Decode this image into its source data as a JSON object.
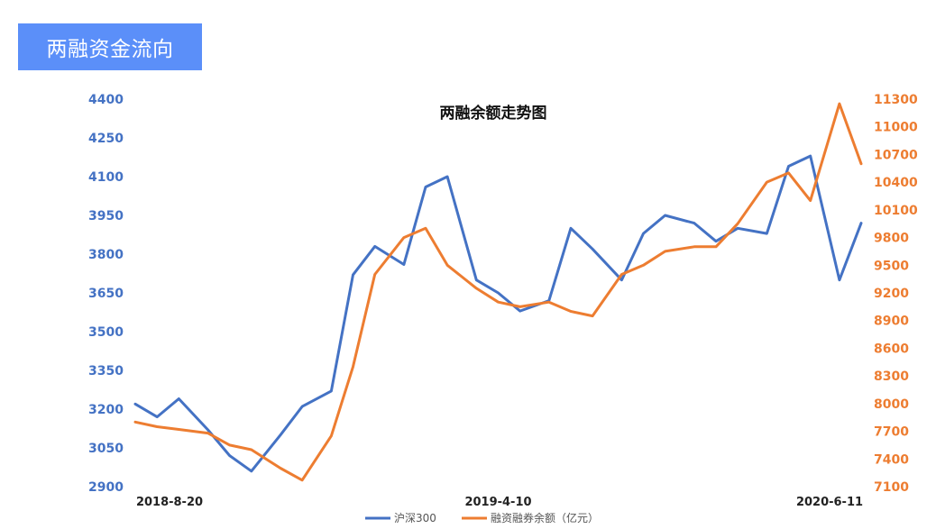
{
  "header": {
    "tag": "两融资金流向"
  },
  "chart_data": {
    "type": "line",
    "title": "两融余额走势图",
    "x_tick_labels": [
      "2018-8-20",
      "2019-4-10",
      "2020-6-11"
    ],
    "y_left": {
      "range": [
        2900,
        4400
      ],
      "ticks": [
        2900,
        3050,
        3200,
        3350,
        3500,
        3650,
        3800,
        3950,
        4100,
        4250,
        4400
      ],
      "color": "#4472c4"
    },
    "y_right": {
      "range": [
        7100,
        11300
      ],
      "ticks": [
        7100,
        7400,
        7700,
        8000,
        8300,
        8600,
        8900,
        9200,
        9500,
        9800,
        10100,
        10400,
        10700,
        11000,
        11300
      ],
      "color": "#ed7d31"
    },
    "x": [
      0,
      0.03,
      0.06,
      0.1,
      0.13,
      0.16,
      0.2,
      0.23,
      0.27,
      0.3,
      0.33,
      0.37,
      0.4,
      0.43,
      0.47,
      0.5,
      0.53,
      0.57,
      0.6,
      0.63,
      0.67,
      0.7,
      0.73,
      0.77,
      0.8,
      0.83,
      0.87,
      0.9,
      0.93,
      0.97,
      1.0
    ],
    "series": [
      {
        "name": "沪深300",
        "axis": "left",
        "color": "#4472c4",
        "values": [
          3220,
          3170,
          3240,
          3120,
          3020,
          2960,
          3100,
          3210,
          3270,
          3720,
          3830,
          3760,
          4060,
          4100,
          3700,
          3650,
          3580,
          3620,
          3900,
          3820,
          3700,
          3880,
          3950,
          3920,
          3850,
          3900,
          3880,
          4140,
          4180,
          3700,
          3920
        ]
      },
      {
        "name": "融资融券余额（亿元）",
        "axis": "right",
        "color": "#ed7d31",
        "values": [
          7800,
          7750,
          7720,
          7680,
          7550,
          7500,
          7300,
          7170,
          7650,
          8400,
          9400,
          9800,
          9900,
          9500,
          9250,
          9100,
          9050,
          9100,
          9000,
          8950,
          9400,
          9500,
          9650,
          9700,
          9700,
          9950,
          10400,
          10500,
          10200,
          11250,
          10600
        ]
      }
    ]
  }
}
